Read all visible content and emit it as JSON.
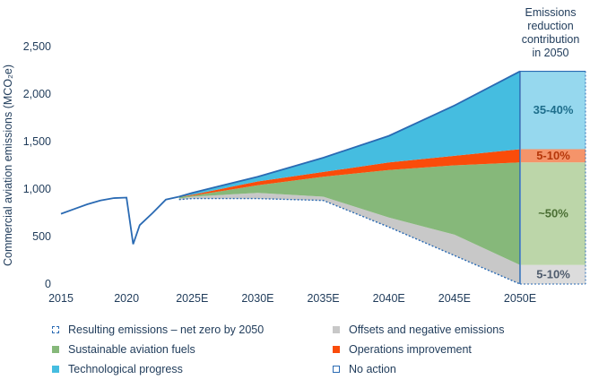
{
  "chart_data": {
    "type": "area",
    "ylabel": "Commercial aviation emissions (MCO₂e)",
    "ylim": [
      0,
      2500
    ],
    "yticks": [
      "0",
      "500",
      "1,000",
      "1,500",
      "2,000",
      "2,500"
    ],
    "xticks": [
      "2015",
      "2020",
      "2025E",
      "2030E",
      "2035E",
      "2040E",
      "2045E",
      "2050E"
    ],
    "historical": {
      "x": [
        2015,
        2016,
        2017,
        2018,
        2019,
        2020,
        2020.5,
        2021,
        2022,
        2023,
        2024
      ],
      "y": [
        740,
        790,
        840,
        880,
        905,
        910,
        420,
        620,
        750,
        890,
        920
      ]
    },
    "projection": {
      "x": [
        2024,
        2025,
        2030,
        2035,
        2040,
        2045,
        2050
      ],
      "no_action": [
        920,
        960,
        1130,
        1330,
        1560,
        1880,
        2240
      ],
      "after_tech": [
        920,
        940,
        1080,
        1180,
        1280,
        1350,
        1420
      ],
      "after_ops": [
        920,
        930,
        1040,
        1130,
        1200,
        1250,
        1280
      ],
      "after_saf": [
        900,
        920,
        960,
        920,
        700,
        520,
        200
      ],
      "net_zero": [
        890,
        900,
        900,
        880,
        600,
        300,
        0
      ]
    },
    "contribution_title": "Emissions reduction contribution in 2050",
    "contributions": [
      {
        "label": "35-40%",
        "color": "#96d8ee",
        "text_color": "#1e6e8c",
        "bottom": 1420,
        "top": 2240
      },
      {
        "label": "5-10%",
        "color": "#f5946a",
        "text_color": "#b6370a",
        "bottom": 1280,
        "top": 1420
      },
      {
        "label": "~50%",
        "color": "#bcd6a9",
        "text_color": "#4a6e33",
        "bottom": 200,
        "top": 1280
      },
      {
        "label": "5-10%",
        "color": "#dcdcdc",
        "text_color": "#4f5c6d",
        "bottom": 0,
        "top": 200
      }
    ],
    "legend": [
      {
        "label": "Resulting emissions – net zero by 2050",
        "style": "dashed",
        "color": "#2a6ab3"
      },
      {
        "label": "Offsets and negative emissions",
        "style": "fill",
        "color": "#c8c8c8"
      },
      {
        "label": "Sustainable aviation fuels",
        "style": "fill",
        "color": "#86b87a"
      },
      {
        "label": "Operations improvement",
        "style": "fill",
        "color": "#fa4c0a"
      },
      {
        "label": "Technological progress",
        "style": "fill",
        "color": "#45bde0"
      },
      {
        "label": "No action",
        "style": "outline",
        "color": "#2a6ab3"
      }
    ]
  }
}
